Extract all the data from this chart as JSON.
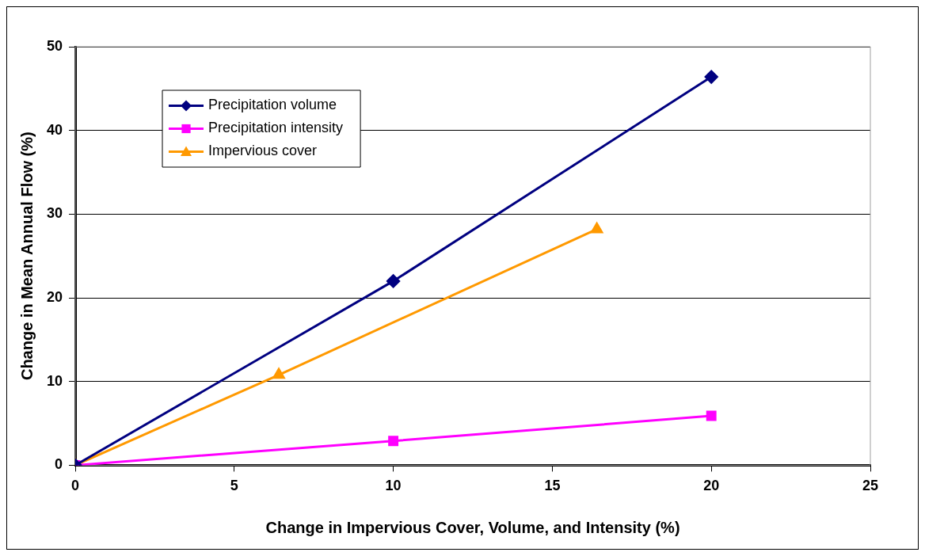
{
  "chart_data": {
    "type": "line",
    "xlabel": "Change in Impervious Cover, Volume, and Intensity (%)",
    "ylabel": "Change in Mean Annual Flow (%)",
    "xlim": [
      0,
      25
    ],
    "xticks": [
      0,
      5,
      10,
      15,
      20,
      25
    ],
    "ylim": [
      0,
      50
    ],
    "yticks": [
      0,
      10,
      20,
      30,
      40,
      50
    ],
    "grid": "y",
    "legend": "top left",
    "series": [
      {
        "name": "Precipitation volume",
        "color": "#000080",
        "marker": "diamond",
        "x": [
          0,
          10,
          20
        ],
        "values": [
          0,
          22,
          46.4
        ]
      },
      {
        "name": "Precipitation intensity",
        "color": "#ff00ff",
        "marker": "square",
        "x": [
          0,
          10,
          20
        ],
        "values": [
          0,
          2.9,
          5.9
        ]
      },
      {
        "name": "Impervious cover",
        "color": "#ff9900",
        "marker": "triangle",
        "x": [
          0,
          6.4,
          16.4
        ],
        "values": [
          0,
          10.8,
          28.2
        ]
      }
    ]
  }
}
